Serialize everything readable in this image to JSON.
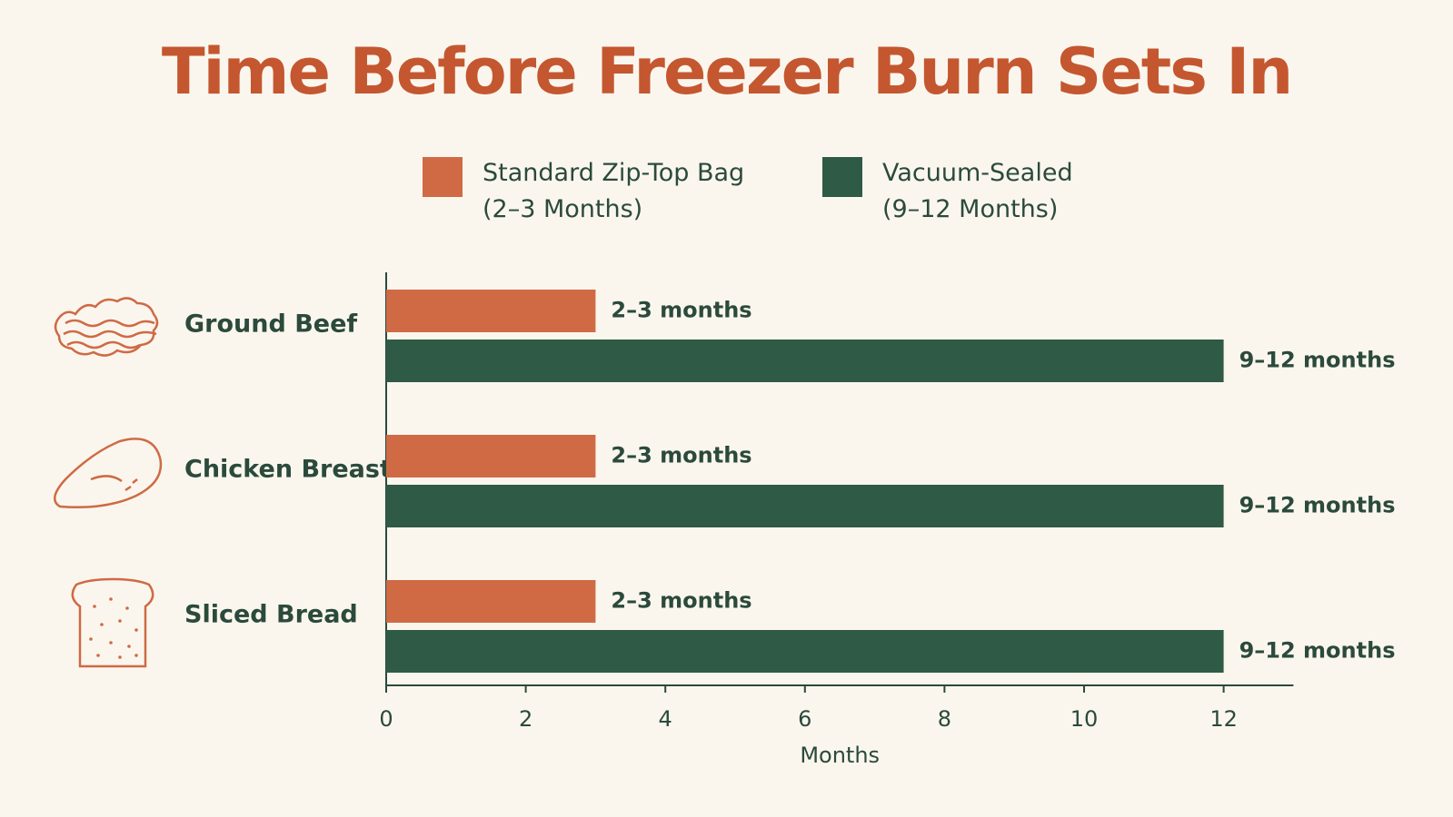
{
  "chart_data": {
    "type": "bar",
    "orientation": "horizontal",
    "title": "Time Before Freezer Burn Sets In",
    "categories": [
      "Ground Beef",
      "Chicken Breast",
      "Sliced Bread"
    ],
    "series": [
      {
        "name": "Standard Zip-Top Bag\n(2–3 Months)",
        "color": "#cf6a45",
        "values": [
          3,
          3,
          3
        ],
        "value_labels": [
          "2–3 months",
          "2–3 months",
          "2–3 months"
        ]
      },
      {
        "name": "Vacuum-Sealed\n(9–12 Months)",
        "color": "#2f5a45",
        "values": [
          12,
          12,
          12
        ],
        "value_labels": [
          "9–12 months",
          "9–12 months",
          "9–12 months"
        ]
      }
    ],
    "xlabel": "Months",
    "xlim": [
      0,
      13
    ],
    "xticks": [
      0,
      2,
      4,
      6,
      8,
      10,
      12
    ]
  }
}
